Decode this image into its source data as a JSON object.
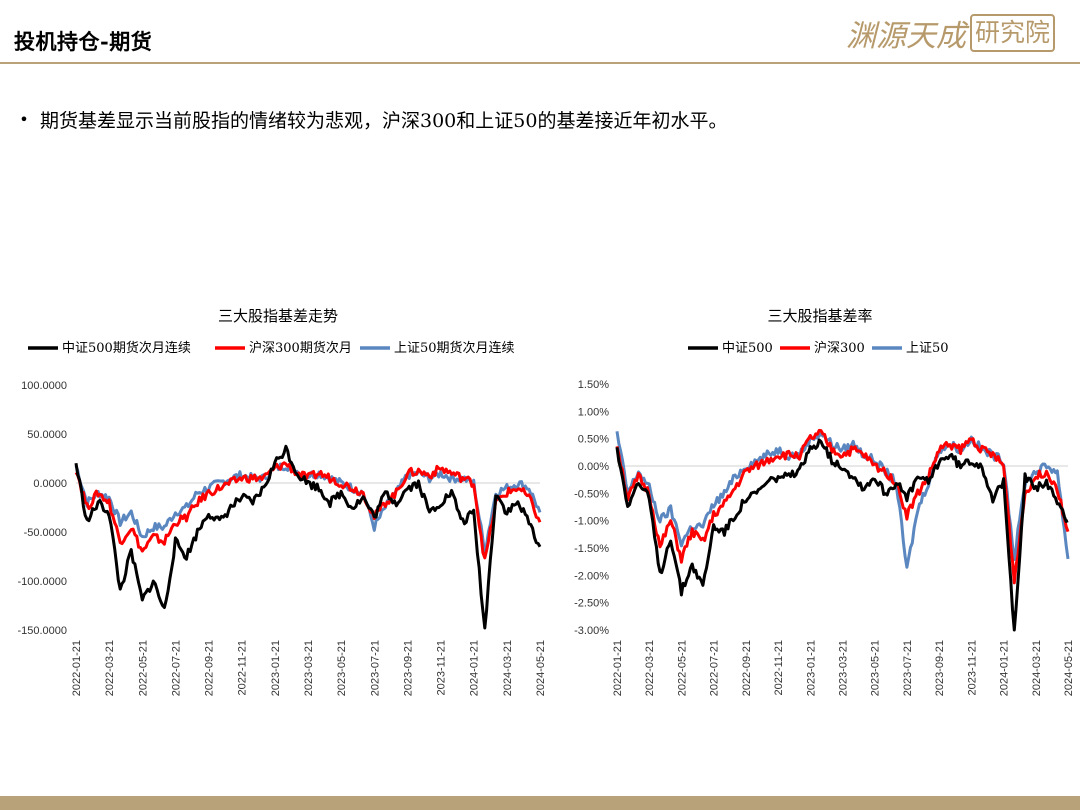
{
  "header": {
    "title": "投机持仓-期货",
    "logo_script": "渊源天成",
    "logo_box": "研究院"
  },
  "bullet": {
    "text": "期货基差显示当前股指的情绪较为悲观，沪深300和上证50的基差接近年初水平。"
  },
  "colors": {
    "csi500": "#000000",
    "hs300": "#ff0000",
    "sz50": "#5b87c0",
    "accent": "#b9a27a"
  },
  "chart_data": [
    {
      "type": "line",
      "title": "三大股指基差走势",
      "x_ticks": [
        "2022-01-21",
        "2022-03-21",
        "2022-05-21",
        "2022-07-21",
        "2022-09-21",
        "2022-11-21",
        "2023-01-21",
        "2023-03-21",
        "2023-05-21",
        "2023-07-21",
        "2023-09-21",
        "2023-11-21",
        "2024-01-21",
        "2024-03-21",
        "2024-05-21"
      ],
      "y_ticks": [
        "100.0000",
        "50.0000",
        "0.0000",
        "-50.0000",
        "-100.0000",
        "-150.0000"
      ],
      "ylim": [
        -150,
        100
      ],
      "legend_position": "top",
      "series": [
        {
          "name": "中证500期货次月连续",
          "color": "#000000",
          "values": [
            20,
            -40,
            -20,
            -30,
            -110,
            -70,
            -120,
            -100,
            -130,
            -60,
            -75,
            -50,
            -30,
            -40,
            -25,
            -15,
            -20,
            -5,
            20,
            35,
            10,
            0,
            -5,
            -20,
            -10,
            -25,
            -15,
            -35,
            -10,
            -20,
            -5,
            0,
            -30,
            -20,
            -10,
            -40,
            -30,
            -150,
            -10,
            -30,
            -20,
            -40,
            -65
          ]
        },
        {
          "name": "沪深300期货次月",
          "color": "#ff0000",
          "values": [
            15,
            -25,
            -10,
            -20,
            -60,
            -45,
            -70,
            -55,
            -60,
            -40,
            -35,
            -20,
            -10,
            -5,
            0,
            5,
            5,
            5,
            15,
            20,
            10,
            5,
            10,
            5,
            0,
            -5,
            -10,
            -35,
            -20,
            -10,
            10,
            12,
            8,
            15,
            10,
            5,
            0,
            -80,
            -20,
            -10,
            -5,
            -15,
            -40
          ]
        },
        {
          "name": "上证50期货次月连续",
          "color": "#5b87c0",
          "values": [
            18,
            -20,
            -10,
            -15,
            -40,
            -30,
            -55,
            -45,
            -45,
            -30,
            -25,
            -10,
            -5,
            0,
            5,
            8,
            5,
            5,
            15,
            18,
            12,
            8,
            10,
            5,
            0,
            -5,
            -10,
            -45,
            -25,
            -10,
            8,
            10,
            5,
            10,
            5,
            5,
            0,
            -70,
            -10,
            -5,
            0,
            -5,
            -30
          ]
        }
      ]
    },
    {
      "type": "line",
      "title": "三大股指基差率",
      "x_ticks": [
        "2022-01-21",
        "2022-03-21",
        "2022-05-21",
        "2022-07-21",
        "2022-09-21",
        "2022-11-21",
        "2023-01-21",
        "2023-03-21",
        "2023-05-21",
        "2023-07-21",
        "2023-09-21",
        "2023-11-21",
        "2024-01-21",
        "2024-03-21",
        "2024-05-21"
      ],
      "y_ticks": [
        "1.50%",
        "1.00%",
        "0.50%",
        "0.00%",
        "-0.50%",
        "-1.00%",
        "-1.50%",
        "-2.00%",
        "-2.50%",
        "-3.00%"
      ],
      "ylim": [
        -3.0,
        1.5
      ],
      "legend_position": "top",
      "series": [
        {
          "name": "中证500",
          "color": "#000000",
          "values": [
            0.3,
            -0.7,
            -0.3,
            -0.6,
            -2.0,
            -1.3,
            -2.3,
            -1.8,
            -2.2,
            -1.1,
            -1.2,
            -0.9,
            -0.6,
            -0.5,
            -0.3,
            -0.2,
            -0.2,
            -0.1,
            0.3,
            0.5,
            0.1,
            0.0,
            -0.2,
            -0.4,
            -0.2,
            -0.5,
            -0.3,
            -0.6,
            -0.2,
            -0.3,
            0.1,
            0.2,
            0.0,
            0.1,
            0.0,
            -0.6,
            -0.3,
            -3.0,
            -0.2,
            -0.4,
            -0.3,
            -0.7,
            -1.0
          ]
        },
        {
          "name": "沪深300",
          "color": "#ff0000",
          "values": [
            0.4,
            -0.6,
            -0.2,
            -0.5,
            -1.5,
            -1.0,
            -1.7,
            -1.2,
            -1.4,
            -0.9,
            -0.7,
            -0.4,
            -0.1,
            0.0,
            0.1,
            0.2,
            0.2,
            0.2,
            0.5,
            0.6,
            0.3,
            0.2,
            0.3,
            0.2,
            0.0,
            -0.1,
            -0.3,
            -0.9,
            -0.5,
            -0.2,
            0.3,
            0.4,
            0.3,
            0.5,
            0.3,
            0.2,
            0.0,
            -2.1,
            -0.5,
            -0.2,
            -0.1,
            -0.4,
            -1.2
          ]
        },
        {
          "name": "上证50",
          "color": "#5b87c0",
          "values": [
            0.6,
            -0.5,
            -0.1,
            -0.4,
            -1.0,
            -0.8,
            -1.4,
            -1.1,
            -1.1,
            -0.7,
            -0.5,
            -0.2,
            0.0,
            0.1,
            0.2,
            0.3,
            0.2,
            0.2,
            0.5,
            0.6,
            0.4,
            0.3,
            0.4,
            0.2,
            0.1,
            -0.1,
            -0.3,
            -1.9,
            -0.8,
            -0.3,
            0.3,
            0.4,
            0.3,
            0.5,
            0.3,
            0.2,
            0.1,
            -1.7,
            -0.3,
            -0.1,
            0.0,
            -0.1,
            -1.7
          ]
        }
      ]
    }
  ]
}
